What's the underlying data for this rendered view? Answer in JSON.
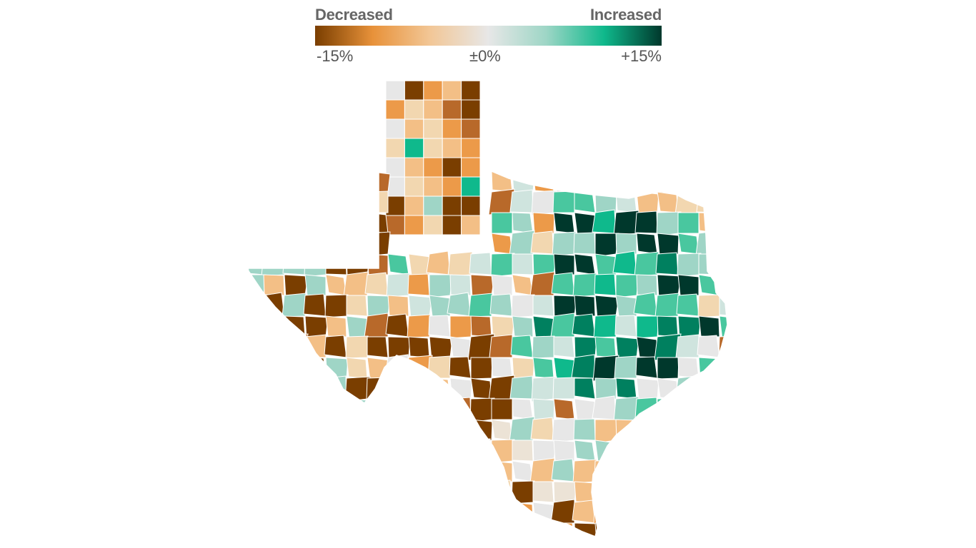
{
  "legend": {
    "left_title": "Decreased",
    "right_title": "Increased",
    "ticks": [
      "-15%",
      "±0%",
      "+15%"
    ],
    "min": -15,
    "max": 15,
    "colors": [
      "#7a3e00",
      "#e8923a",
      "#f2c797",
      "#e7e7e7",
      "#9ed6c6",
      "#0fb98c",
      "#00382c"
    ]
  },
  "palette": {
    "dec_strong": "#7a3e00",
    "dec_mid": "#b8692a",
    "dec_orange": "#ec9a49",
    "dec_light": "#f3bf86",
    "dec_pale": "#f2d7b0",
    "neutral_warm": "#ece3d6",
    "neutral": "#e7e7e7",
    "inc_pale": "#cfe4de",
    "inc_light": "#9fd5c6",
    "inc_mid": "#49c79f",
    "inc_green": "#0fb98c",
    "inc_strong": "#00805f",
    "inc_dark": "#00382c"
  }
}
